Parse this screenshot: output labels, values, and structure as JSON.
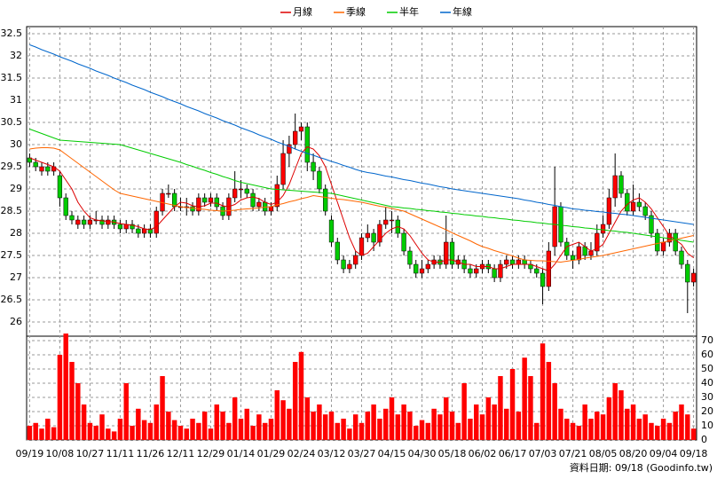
{
  "chart_data": {
    "type": "candlestick",
    "categories": [
      "09/19",
      null,
      null,
      null,
      null,
      "10/08",
      null,
      null,
      null,
      null,
      "10/27",
      null,
      null,
      null,
      null,
      "11/11",
      null,
      null,
      null,
      null,
      "11/26",
      null,
      null,
      null,
      null,
      "12/11",
      null,
      null,
      null,
      null,
      "12/29",
      null,
      null,
      null,
      null,
      "01/14",
      null,
      null,
      null,
      null,
      "01/29",
      null,
      null,
      null,
      null,
      "02/24",
      null,
      null,
      null,
      null,
      "03/12",
      null,
      null,
      null,
      null,
      "03/27",
      null,
      null,
      null,
      null,
      "04/15",
      null,
      null,
      null,
      null,
      "04/30",
      null,
      null,
      null,
      null,
      "05/18",
      null,
      null,
      null,
      null,
      "06/02",
      null,
      null,
      null,
      null,
      "06/17",
      null,
      null,
      null,
      null,
      "07/03",
      null,
      null,
      null,
      null,
      "07/21",
      null,
      null,
      null,
      null,
      "08/05",
      null,
      null,
      null,
      null,
      "08/20",
      null,
      null,
      null,
      null,
      "09/04",
      null,
      null,
      null,
      null,
      "09/18"
    ],
    "open": [
      29.7,
      29.6,
      29.4,
      29.5,
      29.4,
      29.3,
      28.8,
      28.4,
      28.2,
      28.3,
      28.2,
      28.3,
      28.3,
      28.2,
      28.3,
      28.2,
      28.1,
      28.2,
      28.1,
      28.0,
      28.1,
      28.0,
      28.5,
      28.9,
      28.9,
      28.6,
      28.6,
      28.6,
      28.5,
      28.8,
      28.7,
      28.8,
      28.6,
      28.4,
      28.8,
      29.0,
      29.0,
      28.9,
      28.6,
      28.7,
      28.5,
      28.6,
      29.1,
      29.8,
      30.0,
      30.3,
      30.4,
      29.6,
      29.4,
      29.0,
      28.3,
      27.8,
      27.4,
      27.2,
      27.3,
      27.5,
      27.9,
      28.0,
      27.8,
      28.2,
      28.3,
      28.3,
      28.0,
      27.6,
      27.3,
      27.1,
      27.2,
      27.3,
      27.4,
      27.3,
      27.8,
      27.3,
      27.4,
      27.2,
      27.1,
      27.2,
      27.3,
      27.2,
      27.0,
      27.3,
      27.4,
      27.3,
      27.4,
      27.3,
      27.2,
      27.1,
      26.8,
      27.7,
      28.6,
      27.8,
      27.5,
      27.4,
      27.7,
      27.5,
      27.6,
      28.0,
      28.2,
      28.8,
      29.3,
      28.9,
      28.5,
      28.7,
      28.6,
      28.4,
      28.0,
      27.6,
      27.8,
      28.0,
      27.6,
      27.3,
      26.9
    ],
    "high": [
      29.8,
      29.7,
      29.6,
      29.6,
      29.6,
      29.4,
      28.9,
      28.5,
      28.4,
      28.4,
      28.4,
      28.5,
      28.4,
      28.4,
      28.4,
      28.3,
      28.3,
      28.3,
      28.2,
      28.2,
      28.2,
      28.6,
      29.0,
      29.1,
      29.0,
      28.8,
      28.8,
      28.7,
      28.9,
      28.9,
      28.9,
      28.9,
      28.7,
      28.9,
      29.4,
      29.2,
      29.1,
      29.0,
      28.8,
      28.8,
      28.7,
      29.3,
      30.1,
      30.2,
      30.7,
      30.5,
      30.5,
      29.8,
      29.5,
      29.1,
      28.4,
      27.9,
      27.5,
      27.4,
      27.6,
      28.0,
      28.2,
      28.1,
      28.3,
      28.6,
      28.5,
      28.4,
      28.1,
      27.7,
      27.4,
      27.4,
      27.4,
      27.5,
      27.5,
      28.4,
      27.9,
      27.5,
      27.5,
      27.3,
      27.3,
      27.4,
      27.4,
      27.3,
      27.4,
      27.5,
      27.5,
      27.5,
      27.5,
      27.4,
      27.3,
      27.2,
      27.8,
      29.5,
      28.7,
      27.9,
      27.6,
      27.8,
      27.8,
      27.8,
      28.2,
      28.4,
      29.0,
      29.8,
      29.4,
      29.0,
      29.1,
      28.9,
      28.7,
      28.5,
      28.1,
      27.9,
      28.1,
      28.1,
      27.7,
      27.4,
      27.2
    ],
    "low": [
      29.5,
      29.4,
      29.3,
      29.3,
      29.3,
      28.6,
      28.3,
      28.2,
      28.1,
      28.1,
      28.1,
      28.2,
      28.1,
      28.1,
      28.1,
      28.0,
      28.0,
      28.0,
      27.9,
      27.9,
      27.9,
      27.9,
      28.4,
      28.8,
      28.5,
      28.5,
      28.4,
      28.4,
      28.4,
      28.6,
      28.6,
      28.5,
      28.3,
      28.3,
      28.7,
      28.8,
      28.8,
      28.5,
      28.5,
      28.4,
      28.4,
      28.5,
      29.0,
      29.5,
      29.9,
      30.1,
      29.4,
      29.2,
      28.9,
      28.4,
      27.7,
      27.3,
      27.1,
      27.1,
      27.2,
      27.4,
      27.8,
      27.6,
      27.7,
      28.1,
      28.0,
      27.9,
      27.5,
      27.2,
      27.0,
      27.0,
      27.1,
      27.2,
      27.2,
      27.2,
      27.2,
      27.2,
      27.1,
      27.0,
      27.0,
      27.1,
      27.1,
      26.9,
      26.9,
      27.2,
      27.2,
      27.2,
      27.2,
      27.1,
      27.0,
      26.4,
      26.7,
      27.5,
      27.7,
      27.4,
      27.2,
      27.3,
      27.4,
      27.4,
      27.5,
      27.9,
      28.1,
      28.6,
      28.8,
      28.4,
      28.4,
      28.5,
      28.3,
      27.9,
      27.5,
      27.5,
      27.7,
      27.5,
      27.2,
      26.2,
      26.8
    ],
    "close": [
      29.6,
      29.5,
      29.5,
      29.4,
      29.5,
      28.8,
      28.4,
      28.3,
      28.3,
      28.2,
      28.3,
      28.3,
      28.2,
      28.3,
      28.2,
      28.1,
      28.2,
      28.1,
      28.0,
      28.1,
      28.0,
      28.5,
      28.9,
      28.9,
      28.6,
      28.6,
      28.6,
      28.5,
      28.8,
      28.7,
      28.8,
      28.6,
      28.4,
      28.8,
      29.0,
      29.0,
      28.9,
      28.6,
      28.7,
      28.5,
      28.6,
      29.1,
      29.8,
      30.0,
      30.3,
      30.4,
      29.6,
      29.4,
      29.0,
      28.5,
      27.8,
      27.4,
      27.2,
      27.3,
      27.5,
      27.9,
      28.0,
      27.8,
      28.2,
      28.3,
      28.3,
      28.0,
      27.6,
      27.3,
      27.1,
      27.2,
      27.3,
      27.4,
      27.3,
      27.8,
      27.3,
      27.4,
      27.2,
      27.1,
      27.2,
      27.3,
      27.2,
      27.0,
      27.3,
      27.4,
      27.3,
      27.4,
      27.3,
      27.2,
      27.1,
      26.8,
      27.6,
      28.6,
      27.8,
      27.5,
      27.4,
      27.7,
      27.5,
      27.6,
      28.0,
      28.2,
      28.8,
      29.3,
      28.9,
      28.5,
      28.7,
      28.6,
      28.4,
      28.0,
      27.6,
      27.8,
      28.0,
      27.6,
      27.3,
      26.9,
      27.1
    ],
    "volume": [
      10,
      12,
      8,
      15,
      9,
      60,
      75,
      55,
      40,
      25,
      12,
      10,
      18,
      8,
      6,
      15,
      40,
      10,
      22,
      14,
      12,
      25,
      45,
      20,
      14,
      10,
      8,
      15,
      12,
      20,
      8,
      25,
      20,
      12,
      30,
      15,
      22,
      10,
      18,
      12,
      15,
      35,
      28,
      22,
      55,
      62,
      30,
      20,
      25,
      18,
      20,
      12,
      15,
      8,
      18,
      12,
      20,
      25,
      15,
      22,
      30,
      18,
      25,
      20,
      10,
      14,
      12,
      22,
      18,
      30,
      20,
      12,
      40,
      15,
      25,
      18,
      30,
      25,
      45,
      22,
      50,
      20,
      58,
      45,
      12,
      68,
      55,
      40,
      22,
      15,
      12,
      10,
      25,
      15,
      20,
      18,
      30,
      40,
      35,
      22,
      25,
      15,
      18,
      12,
      10,
      15,
      12,
      20,
      25,
      18,
      8
    ],
    "up_color": "#ff0000",
    "down_color": "#00cc00",
    "volume_color": "#ff0000",
    "series": [
      {
        "name": "月線",
        "color": "#dd0000",
        "values": [
          29.7,
          29.65,
          29.6,
          29.55,
          29.5,
          29.4,
          29.2,
          29.0,
          28.7,
          28.5,
          28.35,
          28.3,
          28.28,
          28.27,
          28.25,
          28.22,
          28.2,
          28.18,
          28.15,
          28.1,
          28.08,
          28.15,
          28.3,
          28.45,
          28.6,
          28.7,
          28.68,
          28.62,
          28.6,
          28.62,
          28.68,
          28.68,
          28.62,
          28.6,
          28.65,
          28.75,
          28.8,
          28.82,
          28.78,
          28.7,
          28.65,
          28.7,
          28.85,
          29.1,
          29.45,
          29.8,
          29.95,
          29.9,
          29.75,
          29.5,
          29.1,
          28.7,
          28.3,
          27.9,
          27.6,
          27.5,
          27.55,
          27.7,
          27.85,
          28.0,
          28.1,
          28.15,
          28.1,
          27.95,
          27.75,
          27.55,
          27.4,
          27.35,
          27.35,
          27.4,
          27.4,
          27.35,
          27.3,
          27.3,
          27.25,
          27.25,
          27.25,
          27.2,
          27.2,
          27.25,
          27.3,
          27.3,
          27.3,
          27.3,
          27.25,
          27.2,
          27.15,
          27.3,
          27.5,
          27.7,
          27.75,
          27.8,
          27.7,
          27.6,
          27.65,
          27.75,
          28.0,
          28.25,
          28.5,
          28.65,
          28.75,
          28.8,
          28.7,
          28.55,
          28.35,
          28.15,
          27.95,
          27.85,
          27.75,
          27.55,
          27.45
        ]
      },
      {
        "name": "季線",
        "color": "#ff6600",
        "values": [
          29.9,
          29.92,
          29.93,
          29.93,
          29.92,
          29.88,
          29.78,
          29.68,
          29.58,
          29.48,
          29.38,
          29.28,
          29.18,
          29.08,
          28.98,
          28.9,
          28.87,
          28.84,
          28.81,
          28.78,
          28.75,
          28.72,
          28.69,
          28.66,
          28.63,
          28.6,
          28.58,
          28.57,
          28.55,
          28.54,
          28.52,
          28.51,
          28.5,
          28.51,
          28.52,
          28.54,
          28.55,
          28.56,
          28.57,
          28.59,
          28.6,
          28.64,
          28.67,
          28.71,
          28.74,
          28.78,
          28.81,
          28.85,
          28.83,
          28.81,
          28.79,
          28.77,
          28.76,
          28.74,
          28.72,
          28.7,
          28.67,
          28.64,
          28.61,
          28.59,
          28.56,
          28.53,
          28.5,
          28.44,
          28.38,
          28.32,
          28.26,
          28.2,
          28.14,
          28.08,
          28.01,
          27.95,
          27.89,
          27.83,
          27.76,
          27.7,
          27.66,
          27.61,
          27.57,
          27.53,
          27.49,
          27.44,
          27.4,
          27.39,
          27.38,
          27.38,
          27.37,
          27.36,
          27.35,
          27.37,
          27.39,
          27.41,
          27.44,
          27.46,
          27.48,
          27.5,
          27.53,
          27.56,
          27.59,
          27.62,
          27.65,
          27.68,
          27.71,
          27.74,
          27.77,
          27.8,
          27.83,
          27.86,
          27.89,
          27.92,
          27.95
        ]
      },
      {
        "name": "半年",
        "color": "#00cc00",
        "values": [
          30.35,
          30.3,
          30.25,
          30.2,
          30.15,
          30.1,
          30.09,
          30.08,
          30.07,
          30.06,
          30.05,
          30.04,
          30.03,
          30.02,
          30.01,
          30.0,
          29.96,
          29.92,
          29.88,
          29.84,
          29.8,
          29.76,
          29.72,
          29.68,
          29.64,
          29.6,
          29.55,
          29.51,
          29.46,
          29.42,
          29.37,
          29.33,
          29.28,
          29.24,
          29.19,
          29.15,
          29.12,
          29.09,
          29.06,
          29.03,
          29.0,
          28.99,
          28.98,
          28.97,
          28.96,
          28.95,
          28.94,
          28.93,
          28.92,
          28.91,
          28.9,
          28.87,
          28.84,
          28.81,
          28.78,
          28.75,
          28.72,
          28.69,
          28.66,
          28.63,
          28.6,
          28.59,
          28.57,
          28.56,
          28.54,
          28.53,
          28.51,
          28.5,
          28.48,
          28.47,
          28.45,
          28.44,
          28.42,
          28.41,
          28.39,
          28.38,
          28.36,
          28.35,
          28.33,
          28.32,
          28.3,
          28.29,
          28.27,
          28.26,
          28.24,
          28.23,
          28.21,
          28.2,
          28.18,
          28.17,
          28.15,
          28.14,
          28.12,
          28.11,
          28.09,
          28.08,
          28.06,
          28.05,
          28.03,
          28.02,
          28.0,
          27.98,
          27.96,
          27.94,
          27.92,
          27.9,
          27.88,
          27.86,
          27.84,
          27.82,
          27.8
        ]
      },
      {
        "name": "年線",
        "color": "#0066cc",
        "values": [
          32.25,
          32.2,
          32.14,
          32.09,
          32.04,
          31.98,
          31.93,
          31.88,
          31.82,
          31.77,
          31.72,
          31.66,
          31.61,
          31.56,
          31.5,
          31.45,
          31.4,
          31.34,
          31.29,
          31.24,
          31.18,
          31.13,
          31.08,
          31.02,
          30.97,
          30.92,
          30.86,
          30.81,
          30.76,
          30.7,
          30.65,
          30.6,
          30.54,
          30.49,
          30.44,
          30.38,
          30.33,
          30.28,
          30.22,
          30.17,
          30.12,
          30.06,
          30.01,
          29.96,
          29.9,
          29.85,
          29.8,
          29.76,
          29.71,
          29.67,
          29.62,
          29.58,
          29.53,
          29.49,
          29.44,
          29.4,
          29.37,
          29.35,
          29.32,
          29.29,
          29.27,
          29.24,
          29.21,
          29.19,
          29.16,
          29.13,
          29.11,
          29.08,
          29.05,
          29.03,
          29.0,
          28.98,
          28.96,
          28.94,
          28.92,
          28.9,
          28.88,
          28.86,
          28.84,
          28.82,
          28.8,
          28.78,
          28.75,
          28.73,
          28.7,
          28.68,
          28.65,
          28.63,
          28.6,
          28.58,
          28.55,
          28.54,
          28.52,
          28.51,
          28.49,
          28.48,
          28.46,
          28.45,
          28.43,
          28.42,
          28.4,
          28.38,
          28.36,
          28.34,
          28.32,
          28.3,
          28.28,
          28.26,
          28.24,
          28.22,
          28.2
        ]
      }
    ],
    "ylim": [
      25.7,
      32.66
    ],
    "yticks": [
      26,
      26.5,
      27,
      27.5,
      28,
      28.5,
      29,
      29.5,
      30,
      30.5,
      31,
      31.5,
      32,
      32.5
    ],
    "y2lim": [
      0,
      72.5
    ],
    "y2ticks": [
      0,
      10,
      20,
      30,
      40,
      50,
      60,
      70
    ],
    "grid": true,
    "footer": "資料日期: 09/18 (Goodinfo.tw)"
  }
}
